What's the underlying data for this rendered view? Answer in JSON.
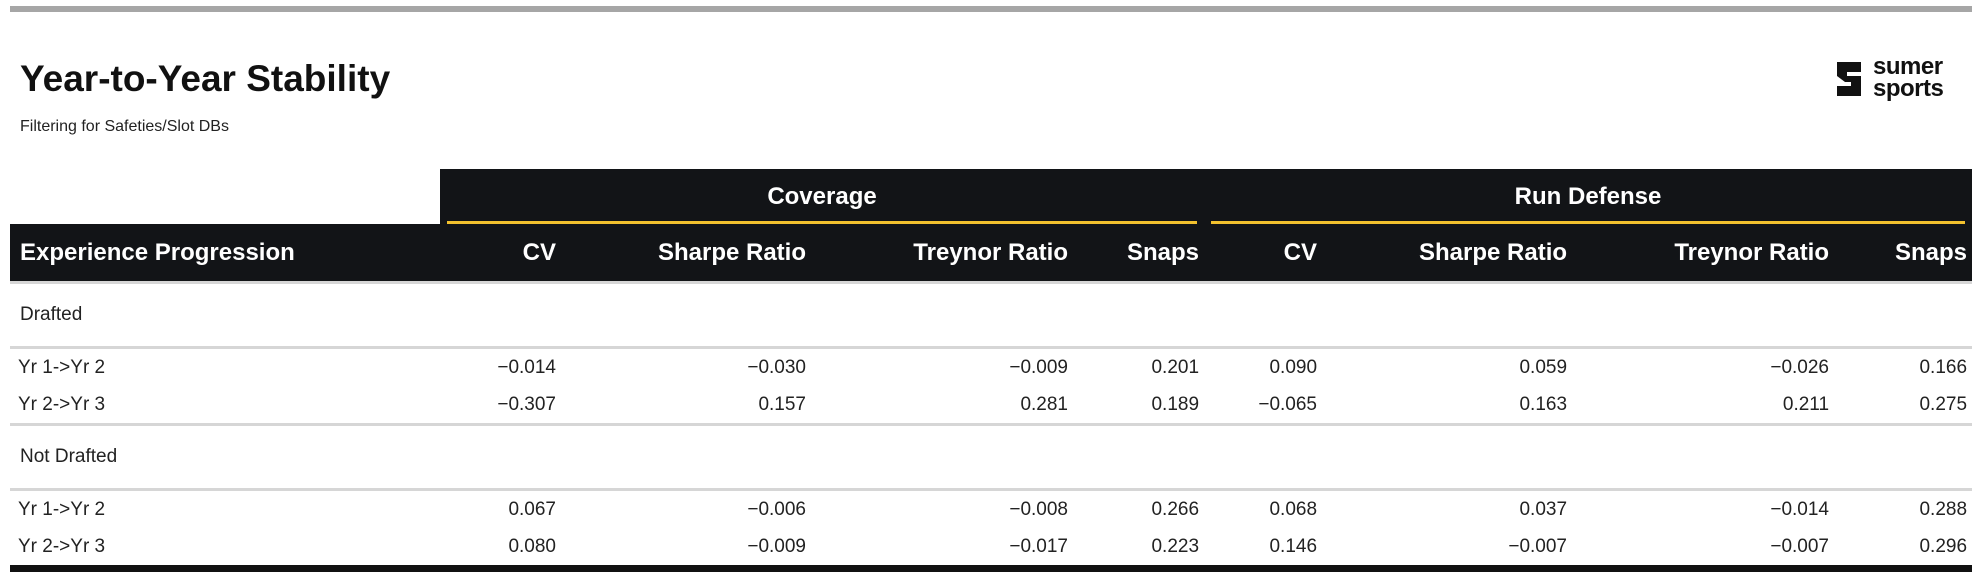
{
  "header": {
    "title": "Year-to-Year Stability",
    "subtitle": "Filtering for Safeties/Slot DBs",
    "logo_text_line1": "sumer",
    "logo_text_line2": "sports"
  },
  "table": {
    "stub_header": "Experience Progression",
    "spanners": [
      {
        "label": "Coverage"
      },
      {
        "label": "Run Defense"
      }
    ],
    "columns": [
      "CV",
      "Sharpe Ratio",
      "Treynor Ratio",
      "Snaps",
      "CV",
      "Sharpe Ratio",
      "Treynor Ratio",
      "Snaps"
    ],
    "groups": [
      {
        "label": "Drafted",
        "rows": [
          {
            "label": "Yr 1->Yr 2",
            "values": [
              "−0.014",
              "−0.030",
              "−0.009",
              "0.201",
              "0.090",
              "0.059",
              "−0.026",
              "0.166"
            ]
          },
          {
            "label": "Yr 2->Yr 3",
            "values": [
              "−0.307",
              "0.157",
              "0.281",
              "0.189",
              "−0.065",
              "0.163",
              "0.211",
              "0.275"
            ]
          }
        ]
      },
      {
        "label": "Not Drafted",
        "rows": [
          {
            "label": "Yr 1->Yr 2",
            "values": [
              "0.067",
              "−0.006",
              "−0.008",
              "0.266",
              "0.068",
              "0.037",
              "−0.014",
              "0.288"
            ]
          },
          {
            "label": "Yr 2->Yr 3",
            "values": [
              "0.080",
              "−0.009",
              "−0.017",
              "0.223",
              "0.146",
              "−0.007",
              "−0.007",
              "0.296"
            ]
          }
        ]
      }
    ]
  },
  "colors": {
    "header_bg": "#121417",
    "spanner_rule": "#f2c12e",
    "row_rule": "#d6d6d6"
  }
}
